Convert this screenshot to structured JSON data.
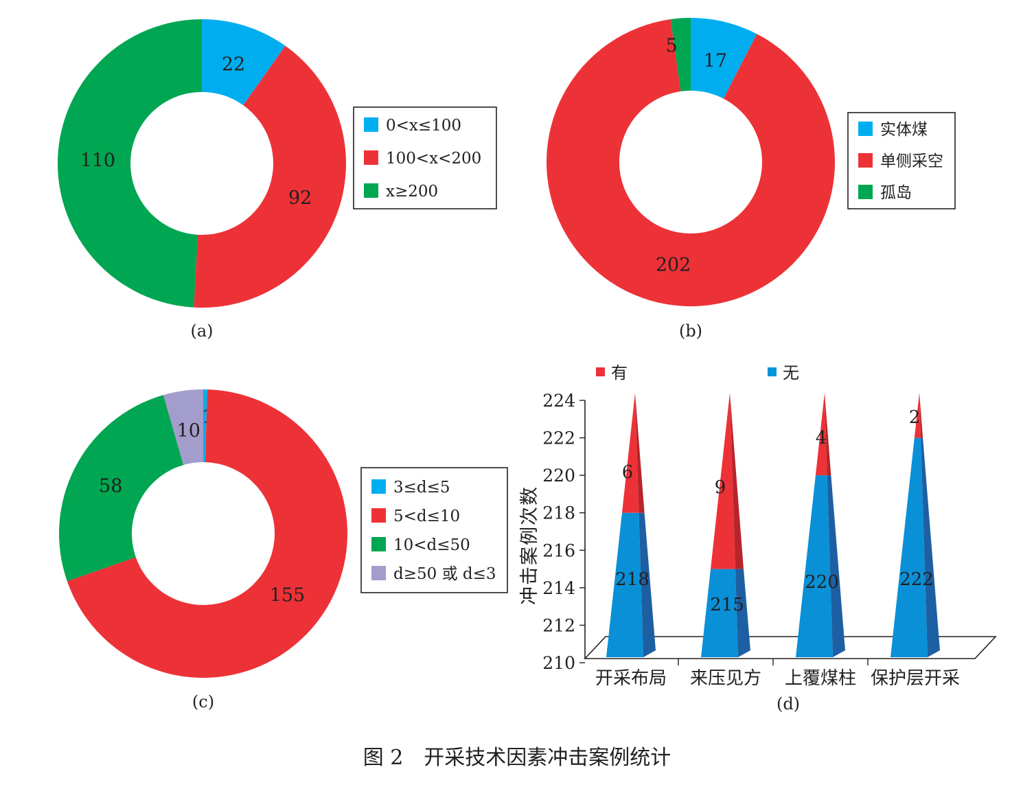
{
  "figure_caption": "图 2　开采技术因素冲击案例统计",
  "colors": {
    "cyan": "#00aeef",
    "red": "#ed3237",
    "green": "#00a651",
    "purple": "#a39dcc",
    "blue": "#0095d9",
    "blue_dark": "#1b5e9e",
    "red_dark": "#b8242b"
  },
  "chart_data": [
    {
      "type": "pie",
      "donut": true,
      "caption": "(a)",
      "slices": [
        {
          "label": "0<x≤100",
          "value": 22,
          "color": "#00aeef"
        },
        {
          "label": "100<x<200",
          "value": 92,
          "color": "#ed3237"
        },
        {
          "label": "x≥200",
          "value": 110,
          "color": "#00a651"
        }
      ],
      "legend_position": "right"
    },
    {
      "type": "pie",
      "donut": true,
      "caption": "(b)",
      "slices": [
        {
          "label": "实体煤",
          "value": 17,
          "color": "#00aeef"
        },
        {
          "label": "单侧采空",
          "value": 202,
          "color": "#ed3237"
        },
        {
          "label": "孤岛",
          "value": 5,
          "color": "#00a651"
        }
      ],
      "legend_position": "right"
    },
    {
      "type": "pie",
      "donut": true,
      "caption": "(c)",
      "slices": [
        {
          "label": "3≤d≤5",
          "value": 1,
          "color": "#00aeef"
        },
        {
          "label": "5<d≤10",
          "value": 155,
          "color": "#ed3237"
        },
        {
          "label": "10<d≤50",
          "value": 58,
          "color": "#00a651"
        },
        {
          "label": "d≥50 或 d≤3",
          "value": 10,
          "color": "#a39dcc"
        }
      ],
      "legend_position": "right"
    },
    {
      "type": "bar",
      "style": "3d-cone-stacked",
      "caption": "(d)",
      "ylabel": "冲击案例次数",
      "ylim": [
        210,
        224
      ],
      "yticks": [
        210,
        212,
        214,
        216,
        218,
        220,
        222,
        224
      ],
      "categories": [
        "开采布局",
        "来压见方",
        "上覆煤柱",
        "保护层开采"
      ],
      "series": [
        {
          "name": "无",
          "values": [
            218,
            215,
            220,
            222
          ],
          "color": "#0095d9"
        },
        {
          "name": "有",
          "values": [
            6,
            9,
            4,
            2
          ],
          "color": "#ed3237"
        }
      ],
      "legend_position": "top"
    }
  ]
}
